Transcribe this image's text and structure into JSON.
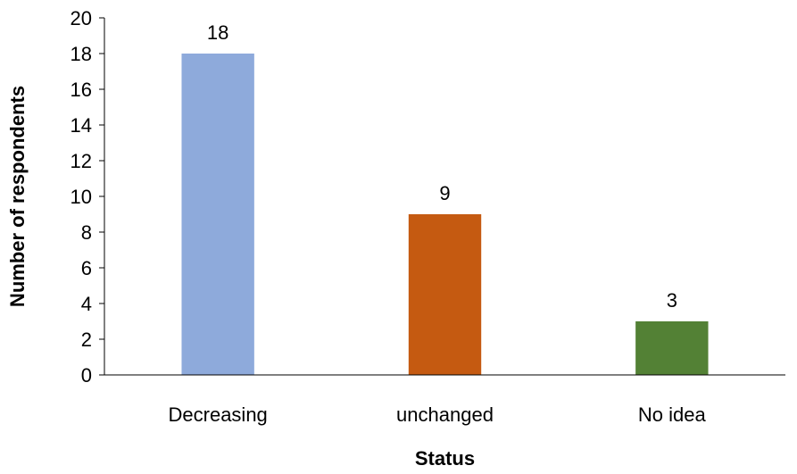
{
  "chart_data": {
    "type": "bar",
    "title": "",
    "xlabel": "Status",
    "ylabel": "Number of respondents",
    "categories": [
      "Decreasing",
      "unchanged",
      "No idea"
    ],
    "values": [
      18,
      9,
      3
    ],
    "value_labels": [
      "18",
      "9",
      "3"
    ],
    "colors": [
      "#8eaadb",
      "#c55a11",
      "#538135"
    ],
    "ylim": [
      0,
      20
    ],
    "yticks": [
      "0",
      "2",
      "4",
      "6",
      "8",
      "10",
      "12",
      "14",
      "16",
      "18",
      "20"
    ],
    "grid": false,
    "legend": "none"
  }
}
